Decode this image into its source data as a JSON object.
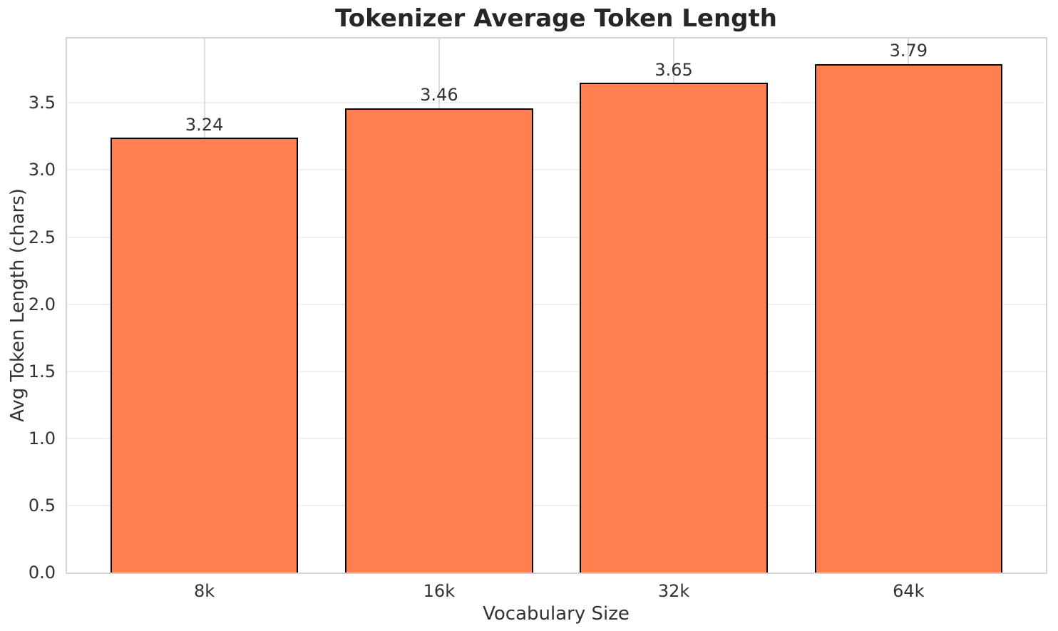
{
  "chart_data": {
    "type": "bar",
    "title": "Tokenizer Average Token Length",
    "xlabel": "Vocabulary Size",
    "ylabel": "Avg Token Length (chars)",
    "categories": [
      "8k",
      "16k",
      "32k",
      "64k"
    ],
    "values": [
      3.24,
      3.46,
      3.65,
      3.79
    ],
    "value_labels": [
      "3.24",
      "3.46",
      "3.65",
      "3.79"
    ],
    "series": [
      {
        "name": "Avg Token Length (chars)",
        "values": [
          3.24,
          3.46,
          3.65,
          3.79
        ]
      }
    ],
    "ylim": [
      0,
      3.98
    ],
    "yticks": [
      0.0,
      0.5,
      1.0,
      1.5,
      2.0,
      2.5,
      3.0,
      3.5
    ],
    "ytick_labels": [
      "0.0",
      "0.5",
      "1.0",
      "1.5",
      "2.0",
      "2.5",
      "3.0",
      "3.5"
    ],
    "grid": true,
    "legend": "none",
    "colors": {
      "bar_fill": "#ff7f50",
      "bar_edge": "#000000",
      "grid_horizontal": "#f0f0f0",
      "grid_vertical": "#dcdcdc",
      "spine": "#d4d4d4",
      "title_text": "#262626",
      "axis_text": "#333333",
      "background": "#ffffff"
    }
  }
}
